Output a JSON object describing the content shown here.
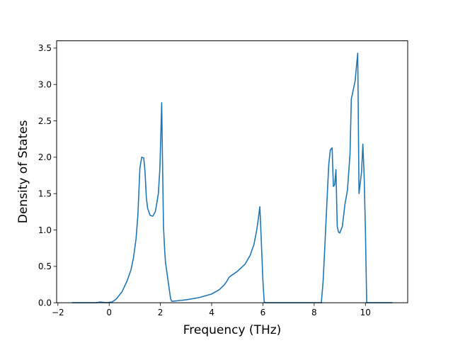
{
  "chart_data": {
    "type": "line",
    "title": "",
    "xlabel": "Frequency (THz)",
    "ylabel": "Density of States",
    "xlim": [
      -2.05,
      11.65
    ],
    "ylim": [
      0.0,
      3.6
    ],
    "xticks": [
      -2,
      0,
      2,
      4,
      6,
      8,
      10
    ],
    "xtick_labels": [
      "−2",
      "0",
      "2",
      "4",
      "6",
      "8",
      "10"
    ],
    "yticks": [
      0.0,
      0.5,
      1.0,
      1.5,
      2.0,
      2.5,
      3.0,
      3.5
    ],
    "ytick_labels": [
      "0.0",
      "0.5",
      "1.0",
      "1.5",
      "2.0",
      "2.5",
      "3.0",
      "3.5"
    ],
    "grid": false,
    "line_color": "#1f77b4",
    "series": [
      {
        "x": [
          -1.45,
          -0.5,
          -0.35,
          -0.1,
          0.1,
          0.2,
          0.3,
          0.5,
          0.7,
          0.85,
          0.95,
          1.05,
          1.12,
          1.2,
          1.27,
          1.35,
          1.4,
          1.45,
          1.5,
          1.6,
          1.7,
          1.8,
          1.85,
          1.92,
          1.98,
          2.05,
          2.08,
          2.12,
          2.17,
          2.2,
          2.3,
          2.4,
          2.45,
          3.0,
          3.5,
          4.0,
          4.3,
          4.5,
          4.6,
          4.68,
          4.75,
          5.0,
          5.3,
          5.5,
          5.65,
          5.75,
          5.82,
          5.88,
          5.92,
          6.0,
          6.05,
          6.1,
          7.0,
          8.0,
          8.28,
          8.35,
          8.42,
          8.5,
          8.57,
          8.63,
          8.7,
          8.75,
          8.8,
          8.85,
          8.9,
          8.95,
          9.0,
          9.1,
          9.2,
          9.3,
          9.4,
          9.45,
          9.6,
          9.65,
          9.7,
          9.75,
          9.85,
          9.9,
          9.95,
          10.0,
          10.05,
          11.05
        ],
        "y": [
          0.0,
          0.0,
          0.01,
          0.0,
          0.01,
          0.03,
          0.06,
          0.15,
          0.3,
          0.45,
          0.62,
          0.88,
          1.2,
          1.85,
          2.0,
          1.99,
          1.8,
          1.45,
          1.3,
          1.2,
          1.19,
          1.25,
          1.35,
          1.5,
          1.85,
          2.75,
          2.0,
          1.05,
          0.7,
          0.55,
          0.3,
          0.05,
          0.02,
          0.04,
          0.07,
          0.12,
          0.18,
          0.25,
          0.3,
          0.35,
          0.37,
          0.43,
          0.53,
          0.65,
          0.8,
          0.98,
          1.15,
          1.32,
          1.0,
          0.3,
          0.01,
          0.0,
          0.0,
          0.0,
          0.0,
          0.3,
          0.8,
          1.4,
          1.9,
          2.1,
          2.13,
          1.6,
          1.62,
          1.83,
          1.05,
          0.97,
          0.96,
          1.05,
          1.35,
          1.55,
          2.05,
          2.8,
          3.05,
          3.25,
          3.43,
          1.5,
          1.8,
          2.18,
          1.75,
          1.0,
          0.0,
          0.0
        ]
      }
    ]
  }
}
